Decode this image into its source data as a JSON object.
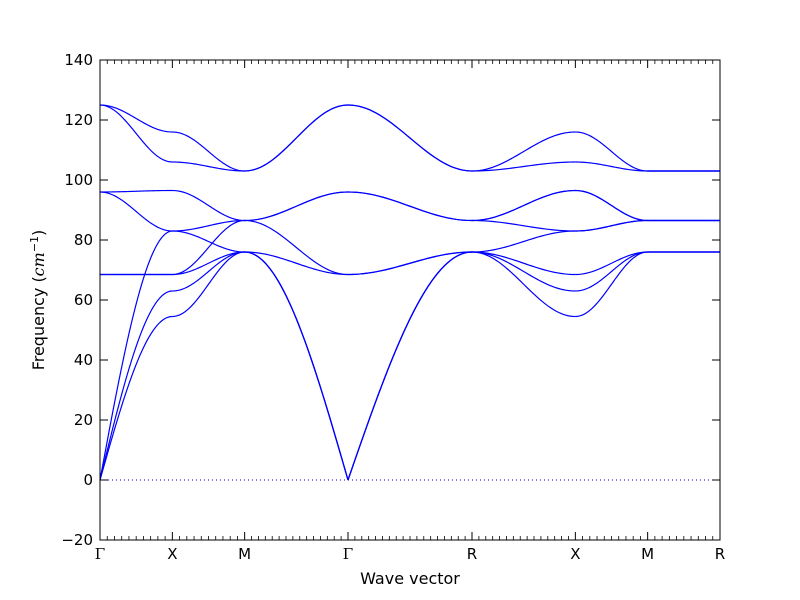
{
  "chart_data": {
    "type": "line",
    "title": "",
    "xlabel": "Wave vector",
    "ylabel": {
      "prefix": "Frequency (",
      "unit": "cm",
      "exponent": "−1",
      "suffix": ")"
    },
    "ylim": [
      -20,
      140
    ],
    "yticks": [
      "−20",
      "0",
      "20",
      "40",
      "60",
      "80",
      "100",
      "120",
      "140"
    ],
    "ytick_values": [
      -20,
      0,
      20,
      40,
      60,
      80,
      100,
      120,
      140
    ],
    "xlim": [
      0,
      1
    ],
    "high_symmetry_points": [
      {
        "label": "Γ",
        "x": 0.0
      },
      {
        "label": "X",
        "x": 0.1167
      },
      {
        "label": "M",
        "x": 0.2333
      },
      {
        "label": "Γ",
        "x": 0.4
      },
      {
        "label": "R",
        "x": 0.6
      },
      {
        "label": "X",
        "x": 0.7667
      },
      {
        "label": "M",
        "x": 0.8833
      },
      {
        "label": "R",
        "x": 1.0
      }
    ],
    "zero_line": {
      "y": 0,
      "style": "dotted",
      "color": "#0000ff"
    },
    "line_color": "#0000ff",
    "segments": [
      {
        "name": "Γ-X",
        "branches": [
          [
            0,
            54.5
          ],
          [
            0,
            63
          ],
          [
            0,
            83
          ],
          [
            68.5,
            68.5
          ],
          [
            68.5,
            68.5
          ],
          [
            96,
            83
          ],
          [
            96,
            96.5
          ],
          [
            125,
            106
          ],
          [
            125,
            116
          ]
        ]
      },
      {
        "name": "X-M",
        "branches": [
          [
            54.5,
            76
          ],
          [
            63,
            76
          ],
          [
            83,
            76
          ],
          [
            68.5,
            76
          ],
          [
            68.5,
            86.5
          ],
          [
            83,
            86.5
          ],
          [
            96.5,
            86.5
          ],
          [
            106,
            103
          ],
          [
            116,
            103
          ]
        ]
      },
      {
        "name": "M-Γ",
        "branches": [
          [
            76,
            0
          ],
          [
            76,
            0
          ],
          [
            76,
            0
          ],
          [
            76,
            68.5
          ],
          [
            86.5,
            68.5
          ],
          [
            86.5,
            96
          ],
          [
            86.5,
            96
          ],
          [
            103,
            125
          ],
          [
            103,
            125
          ]
        ]
      },
      {
        "name": "Γ-R",
        "branches": [
          [
            0,
            76
          ],
          [
            0,
            76
          ],
          [
            0,
            76
          ],
          [
            68.5,
            76
          ],
          [
            68.5,
            76
          ],
          [
            96,
            86.5
          ],
          [
            96,
            86.5
          ],
          [
            125,
            103
          ],
          [
            125,
            103
          ]
        ]
      },
      {
        "name": "R-X",
        "branches": [
          [
            76,
            54.5
          ],
          [
            76,
            63
          ],
          [
            76,
            68.5
          ],
          [
            76,
            83
          ],
          [
            86.5,
            83
          ],
          [
            86.5,
            96.5
          ],
          [
            86.5,
            96.5
          ],
          [
            103,
            106
          ],
          [
            103,
            116
          ]
        ]
      },
      {
        "name": "X-M",
        "branches": [
          [
            54.5,
            76
          ],
          [
            63,
            76
          ],
          [
            68.5,
            76
          ],
          [
            83,
            86.5
          ],
          [
            83,
            86.5
          ],
          [
            96.5,
            86.5
          ],
          [
            96.5,
            86.5
          ],
          [
            106,
            103
          ],
          [
            116,
            103
          ]
        ]
      },
      {
        "name": "M-R",
        "branches": [
          [
            76,
            76
          ],
          [
            76,
            76
          ],
          [
            76,
            76
          ],
          [
            86.5,
            86.5
          ],
          [
            86.5,
            86.5
          ],
          [
            86.5,
            86.5
          ],
          [
            103,
            103
          ],
          [
            103,
            103
          ],
          [
            103,
            103
          ]
        ]
      }
    ]
  }
}
